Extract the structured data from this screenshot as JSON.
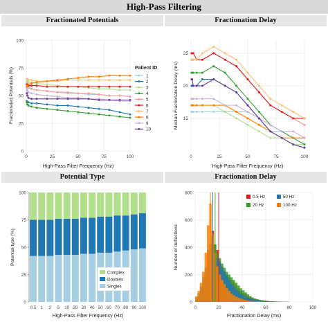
{
  "title": "High-Pass Filtering",
  "panels": {
    "a": "Fractionated Potentials",
    "b": "Fractionation Delay",
    "c": "Potential Type",
    "d": "Fractionation Delay"
  },
  "chart_data": [
    {
      "type": "line",
      "title": "Fractionated Potentials",
      "xlabel": "High-Pass Filter Frequency (Hz)",
      "ylabel": "Fractionated Potentials (%)",
      "xlim": [
        0,
        100
      ],
      "ylim": [
        0,
        100
      ],
      "xticks": [
        "0",
        "25",
        "50",
        "75",
        "100"
      ],
      "yticks": [
        "0",
        "25",
        "50",
        "75",
        "100"
      ],
      "legend_title": "Patient ID",
      "legend_position": "right",
      "x": [
        0.5,
        1,
        2,
        5,
        10,
        20,
        30,
        40,
        50,
        60,
        70,
        80,
        90,
        100
      ],
      "series": [
        {
          "name": "1",
          "color": "#a6cee3",
          "values": [
            57,
            56,
            57,
            56,
            55,
            54,
            53,
            52,
            52,
            51,
            51,
            50,
            50,
            49
          ]
        },
        {
          "name": "2",
          "color": "#1f78b4",
          "values": [
            45,
            44,
            44,
            43,
            43,
            42,
            41,
            41,
            40,
            39,
            38,
            37,
            35,
            33
          ]
        },
        {
          "name": "3",
          "color": "#b2df8a",
          "values": [
            63,
            62,
            62,
            62,
            61,
            60,
            59,
            58,
            58,
            57,
            56,
            56,
            55,
            55
          ]
        },
        {
          "name": "4",
          "color": "#33a02c",
          "values": [
            44,
            42,
            41,
            40,
            39,
            38,
            37,
            36,
            35,
            34,
            33,
            32,
            31,
            30
          ]
        },
        {
          "name": "5",
          "color": "#fb9a99",
          "values": [
            61,
            60,
            58,
            56,
            55,
            54,
            53,
            53,
            52,
            52,
            51,
            50,
            50,
            49
          ]
        },
        {
          "name": "6",
          "color": "#e31a1c",
          "values": [
            60,
            60,
            59,
            59,
            59,
            58,
            58,
            58,
            58,
            58,
            58,
            58,
            58,
            58
          ]
        },
        {
          "name": "7",
          "color": "#fdbf6f",
          "values": [
            65,
            65,
            64,
            64,
            63,
            63,
            63,
            64,
            64,
            64,
            64,
            64,
            64,
            64
          ]
        },
        {
          "name": "8",
          "color": "#ff7f00",
          "values": [
            58,
            59,
            60,
            61,
            62,
            63,
            64,
            65,
            66,
            67,
            67,
            68,
            68,
            68
          ]
        },
        {
          "name": "9",
          "color": "#cab2d6",
          "values": [
            55,
            54,
            53,
            52,
            51,
            50,
            49,
            48,
            48,
            47,
            47,
            46,
            45,
            45
          ]
        },
        {
          "name": "10",
          "color": "#6a3d9a",
          "values": [
            52,
            50,
            48,
            47,
            47,
            47,
            47,
            47,
            47,
            47,
            46,
            46,
            46,
            46
          ]
        }
      ]
    },
    {
      "type": "line",
      "title": "Fractionation Delay",
      "xlabel": "High-Pass Filter Frequency (Hz)",
      "ylabel": "Median Fractionation Delay (ms)",
      "xlim": [
        0,
        100
      ],
      "ylim": [
        10,
        27
      ],
      "xticks": [
        "0",
        "25",
        "50",
        "75",
        "100"
      ],
      "yticks": [
        "15",
        "20",
        "25"
      ],
      "x": [
        0.5,
        1,
        2,
        5,
        10,
        20,
        30,
        40,
        50,
        60,
        70,
        80,
        90,
        100
      ],
      "series": [
        {
          "name": "1",
          "color": "#a6cee3",
          "values": [
            16,
            16,
            16,
            16,
            16,
            16,
            16,
            16,
            16,
            15,
            13,
            13,
            12,
            12
          ]
        },
        {
          "name": "2",
          "color": "#1f78b4",
          "values": [
            20,
            20,
            20,
            20,
            21,
            21,
            20,
            19,
            17,
            15,
            13,
            12,
            11,
            10.5
          ]
        },
        {
          "name": "3",
          "color": "#b2df8a",
          "values": [
            17,
            17,
            17,
            17,
            17,
            17,
            16,
            15,
            14,
            13,
            12,
            12,
            11,
            11
          ]
        },
        {
          "name": "4",
          "color": "#33a02c",
          "values": [
            22,
            22,
            22,
            22,
            22,
            23,
            22,
            20,
            18,
            16,
            14,
            13,
            12,
            11
          ]
        },
        {
          "name": "5",
          "color": "#fb9a99",
          "values": [
            24,
            24,
            24,
            24,
            24,
            25,
            24,
            23,
            21,
            19,
            17,
            16,
            15,
            14
          ]
        },
        {
          "name": "6",
          "color": "#e31a1c",
          "values": [
            25,
            25,
            25,
            24,
            24,
            25,
            24,
            23,
            21,
            19,
            17,
            16,
            15,
            15
          ]
        },
        {
          "name": "7",
          "color": "#fdbf6f",
          "values": [
            24,
            24,
            24,
            24,
            25,
            26,
            25,
            24,
            22,
            20,
            18,
            17,
            16,
            15
          ]
        },
        {
          "name": "8",
          "color": "#ff7f00",
          "values": [
            17,
            17,
            17,
            17,
            17,
            17,
            17,
            16,
            15,
            14,
            13,
            12,
            12,
            12
          ]
        },
        {
          "name": "9",
          "color": "#cab2d6",
          "values": [
            18,
            18,
            18,
            18,
            18,
            18,
            17,
            17,
            16,
            15,
            14,
            13,
            13,
            12
          ]
        },
        {
          "name": "10",
          "color": "#6a3d9a",
          "values": [
            21,
            21,
            20,
            20,
            20,
            21,
            20,
            19,
            17,
            15,
            13,
            12,
            11,
            10.5
          ]
        }
      ]
    },
    {
      "type": "bar",
      "stacked": true,
      "title": "Potential Type",
      "xlabel": "High-Pass Filter Frequency (Hz)",
      "ylabel": "Potential type (%)",
      "ylim": [
        0,
        100
      ],
      "yticks": [
        "0",
        "25",
        "50",
        "75",
        "100"
      ],
      "legend_position": "bottom-right",
      "categories": [
        "0.5",
        "1",
        "2",
        "5",
        "10",
        "20",
        "30",
        "40",
        "50",
        "60",
        "70",
        "80",
        "90",
        "100"
      ],
      "series": [
        {
          "name": "Singles",
          "color": "#a6cee3",
          "values": [
            42,
            42,
            42,
            43,
            43,
            43,
            44,
            44,
            45,
            45,
            46,
            47,
            48,
            49
          ]
        },
        {
          "name": "Doubles",
          "color": "#1f78b4",
          "values": [
            33,
            33,
            33,
            33,
            33,
            33,
            33,
            33,
            33,
            33,
            33,
            32,
            32,
            32
          ]
        },
        {
          "name": "Complex",
          "color": "#b2df8a",
          "values": [
            25,
            25,
            25,
            24,
            24,
            24,
            23,
            23,
            22,
            22,
            21,
            21,
            20,
            19
          ]
        }
      ],
      "legend_order": [
        "Complex",
        "Doubles",
        "Singles"
      ]
    },
    {
      "type": "histogram",
      "title": "Fractionation Delay",
      "xlabel": "Fractionation Delay (ms)",
      "ylabel": "Number of deflections",
      "xlim": [
        0,
        100
      ],
      "ylim": [
        0,
        800
      ],
      "xticks": [
        "0",
        "20",
        "40",
        "60",
        "80",
        "100"
      ],
      "yticks": [
        "0",
        "200",
        "400",
        "600",
        "800"
      ],
      "legend_position": "top-right",
      "bin_width": 2,
      "series": [
        {
          "name": "0.5 Hz",
          "color": "#e31a1c",
          "median": 20,
          "counts": [
            15,
            30,
            60,
            100,
            140,
            280,
            380,
            520,
            420,
            380,
            300,
            260,
            230,
            200,
            180,
            160,
            140,
            120,
            100,
            80,
            65,
            55,
            45,
            35,
            28,
            22,
            18,
            14,
            12,
            10,
            8,
            6,
            5,
            4,
            3,
            2,
            2,
            1,
            1,
            1,
            0,
            0,
            0,
            0,
            0,
            0,
            0,
            0,
            0,
            0
          ]
        },
        {
          "name": "20 Hz",
          "color": "#33a02c",
          "median": 17,
          "counts": [
            20,
            40,
            80,
            130,
            180,
            320,
            420,
            480,
            420,
            360,
            320,
            280,
            250,
            220,
            200,
            180,
            160,
            140,
            120,
            100,
            85,
            70,
            55,
            42,
            32,
            25,
            20,
            15,
            12,
            10,
            8,
            6,
            5,
            4,
            3,
            2,
            2,
            1,
            1,
            1,
            0,
            0,
            0,
            0,
            0,
            0,
            0,
            0,
            0,
            0
          ]
        },
        {
          "name": "50 Hz",
          "color": "#1f78b4",
          "median": 15,
          "counts": [
            30,
            60,
            110,
            180,
            250,
            380,
            430,
            400,
            360,
            320,
            290,
            250,
            220,
            190,
            160,
            130,
            110,
            90,
            75,
            60,
            48,
            38,
            30,
            24,
            18,
            14,
            11,
            9,
            7,
            5,
            4,
            3,
            2,
            2,
            1,
            1,
            1,
            0,
            0,
            0,
            0,
            0,
            0,
            0,
            0,
            0,
            0,
            0,
            0,
            0
          ]
        },
        {
          "name": "100 Hz",
          "color": "#ff7f00",
          "median": 13,
          "counts": [
            40,
            80,
            140,
            220,
            360,
            560,
            720,
            500,
            360,
            260,
            200,
            160,
            130,
            100,
            80,
            60,
            48,
            38,
            30,
            24,
            18,
            14,
            10,
            8,
            6,
            5,
            4,
            3,
            2,
            2,
            1,
            1,
            1,
            0,
            0,
            0,
            0,
            0,
            0,
            0,
            0,
            0,
            0,
            0,
            0,
            0,
            0,
            0,
            0,
            0
          ]
        }
      ]
    }
  ]
}
